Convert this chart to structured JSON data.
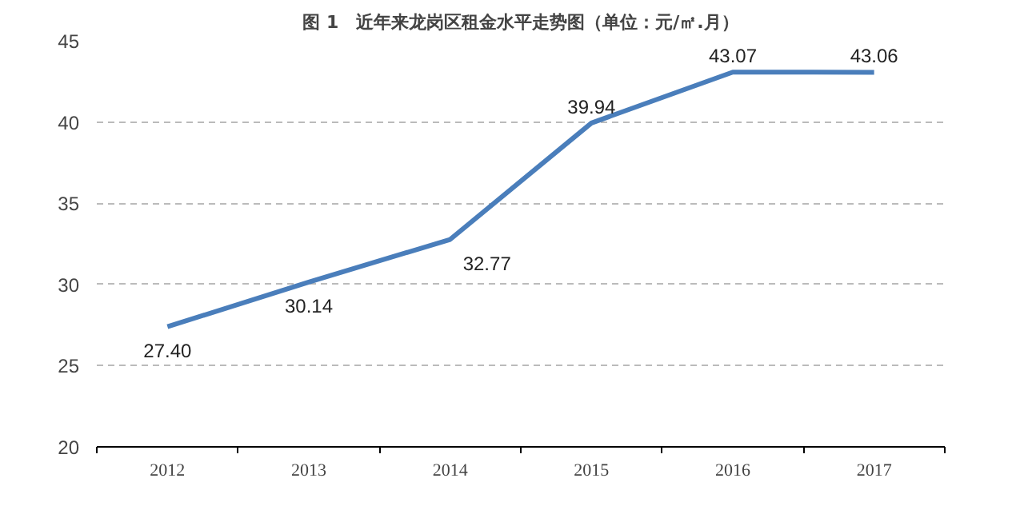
{
  "chart_data": {
    "type": "line",
    "title": "图 1　近年来龙岗区租金水平走势图（单位：元/㎡.月）",
    "categories": [
      "2012",
      "2013",
      "2014",
      "2015",
      "2016",
      "2017"
    ],
    "series": [
      {
        "color": "#4a7ebb",
        "values": [
          27.4,
          30.14,
          32.77,
          39.94,
          43.07,
          43.06
        ]
      }
    ],
    "ylim": [
      20,
      45
    ],
    "yticks": [
      20,
      25,
      30,
      35,
      40,
      45
    ],
    "value_labels": [
      "27.40",
      "30.14",
      "32.77",
      "39.94",
      "43.07",
      "43.06"
    ],
    "grid": "y",
    "line_style": "solid"
  }
}
